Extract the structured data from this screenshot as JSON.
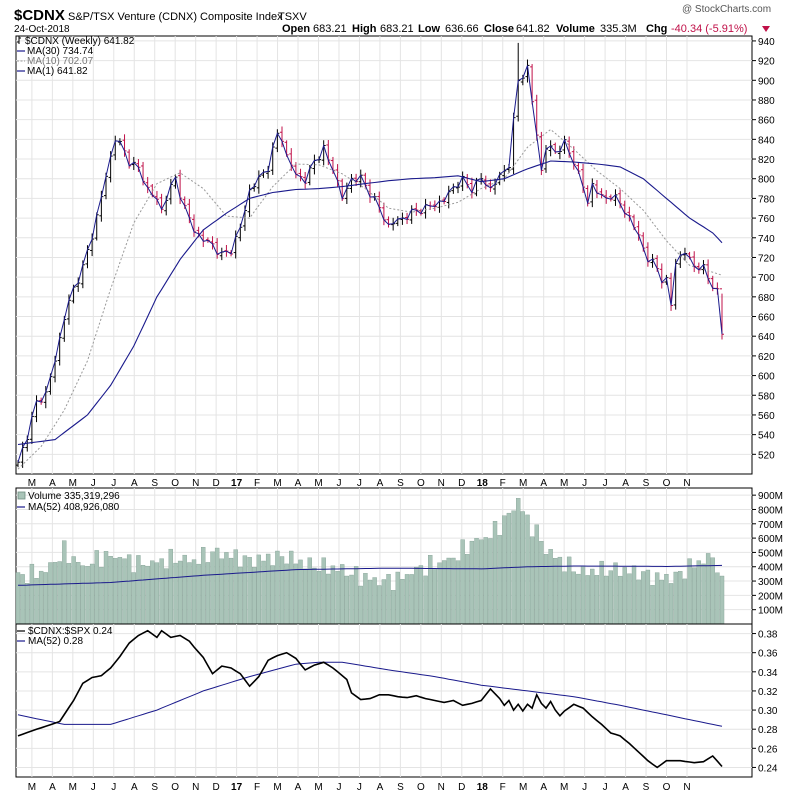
{
  "header": {
    "symbol": "$CDNX",
    "name": "S&P/TSX Venture (CDNX) Composite Index",
    "exchange": "TSXV",
    "date": "24-Oct-2018",
    "open_label": "Open",
    "open": "683.21",
    "high_label": "High",
    "high": "683.21",
    "low_label": "Low",
    "low": "636.66",
    "close_label": "Close",
    "close": "641.82",
    "volume_label": "Volume",
    "volume": "335.3M",
    "chg_label": "Chg",
    "chg": "-40.34 (-5.91%)",
    "watermark": "@ StockCharts.com"
  },
  "colors": {
    "up_bar": "#000000",
    "down_bar": "#c01048",
    "ma30": "#1a1a8c",
    "ma10": "#999999",
    "ma1": "#1a1a8c",
    "volume_fill": "#a9c4b8",
    "volume_edge": "#6f8f82",
    "ratio_line": "#000000",
    "ratio_ma": "#1a1a8c",
    "grid": "#e4e4e4",
    "chg_red": "#c01048"
  },
  "chart_data": [
    {
      "type": "line",
      "panel": "price",
      "title": "$CDNX S&P/TSX Venture (CDNX) Composite Index TSXV",
      "ylim": [
        500,
        945
      ],
      "yticks": [
        520,
        540,
        560,
        580,
        600,
        620,
        640,
        660,
        680,
        700,
        720,
        740,
        760,
        780,
        800,
        820,
        840,
        860,
        880,
        900,
        920,
        940
      ],
      "legend": [
        {
          "label": "$CDNX (Weekly) 641.82",
          "style": "bar"
        },
        {
          "label": "MA(30) 734.74",
          "style": "solid"
        },
        {
          "label": "MA(10) 702.07",
          "style": "dotted"
        },
        {
          "label": "MA(1) 641.82",
          "style": "solid"
        }
      ],
      "x_months": [
        "M",
        "A",
        "M",
        "J",
        "J",
        "A",
        "S",
        "O",
        "N",
        "D",
        "17",
        "F",
        "M",
        "A",
        "M",
        "J",
        "J",
        "A",
        "S",
        "O",
        "N",
        "D",
        "18",
        "F",
        "M",
        "A",
        "M",
        "J",
        "J",
        "A",
        "S",
        "O",
        "N"
      ],
      "close_keypoints": [
        [
          0,
          510
        ],
        [
          2,
          540
        ],
        [
          4,
          572
        ],
        [
          6,
          582
        ],
        [
          8,
          615
        ],
        [
          10,
          660
        ],
        [
          12,
          688
        ],
        [
          14,
          710
        ],
        [
          16,
          742
        ],
        [
          18,
          782
        ],
        [
          20,
          822
        ],
        [
          21,
          842
        ],
        [
          22,
          835
        ],
        [
          24,
          818
        ],
        [
          26,
          810
        ],
        [
          28,
          790
        ],
        [
          30,
          778
        ],
        [
          31,
          768
        ],
        [
          32,
          782
        ],
        [
          34,
          800
        ],
        [
          36,
          770
        ],
        [
          38,
          748
        ],
        [
          40,
          738
        ],
        [
          42,
          733
        ],
        [
          44,
          722
        ],
        [
          46,
          728
        ],
        [
          48,
          750
        ],
        [
          50,
          788
        ],
        [
          52,
          800
        ],
        [
          54,
          812
        ],
        [
          56,
          845
        ],
        [
          57,
          842
        ],
        [
          58,
          822
        ],
        [
          60,
          805
        ],
        [
          62,
          798
        ],
        [
          64,
          818
        ],
        [
          66,
          830
        ],
        [
          67,
          818
        ],
        [
          68,
          812
        ],
        [
          70,
          780
        ],
        [
          72,
          800
        ],
        [
          74,
          800
        ],
        [
          76,
          786
        ],
        [
          78,
          770
        ],
        [
          80,
          752
        ],
        [
          82,
          758
        ],
        [
          84,
          762
        ],
        [
          86,
          768
        ],
        [
          88,
          770
        ],
        [
          90,
          774
        ],
        [
          92,
          778
        ],
        [
          94,
          792
        ],
        [
          96,
          798
        ],
        [
          98,
          790
        ],
        [
          100,
          800
        ],
        [
          102,
          790
        ],
        [
          104,
          802
        ],
        [
          106,
          815
        ],
        [
          108,
          900
        ],
        [
          110,
          912
        ],
        [
          112,
          845
        ],
        [
          113,
          808
        ],
        [
          114,
          832
        ],
        [
          116,
          828
        ],
        [
          118,
          835
        ],
        [
          120,
          818
        ],
        [
          122,
          792
        ],
        [
          123,
          775
        ],
        [
          124,
          795
        ],
        [
          126,
          780
        ],
        [
          128,
          783
        ],
        [
          130,
          775
        ],
        [
          132,
          760
        ],
        [
          134,
          742
        ],
        [
          136,
          718
        ],
        [
          138,
          710
        ],
        [
          139,
          698
        ],
        [
          140,
          695
        ],
        [
          141,
          672
        ],
        [
          142,
          716
        ],
        [
          144,
          725
        ],
        [
          146,
          712
        ],
        [
          148,
          708
        ],
        [
          150,
          692
        ],
        [
          151,
          684
        ],
        [
          152,
          642
        ]
      ],
      "ma30_keypoints": [
        [
          0,
          530
        ],
        [
          8,
          535
        ],
        [
          15,
          560
        ],
        [
          20,
          590
        ],
        [
          25,
          630
        ],
        [
          30,
          680
        ],
        [
          35,
          718
        ],
        [
          40,
          748
        ],
        [
          45,
          765
        ],
        [
          50,
          780
        ],
        [
          55,
          786
        ],
        [
          60,
          789
        ],
        [
          65,
          790
        ],
        [
          70,
          792
        ],
        [
          75,
          795
        ],
        [
          80,
          798
        ],
        [
          85,
          800
        ],
        [
          90,
          801
        ],
        [
          95,
          803
        ],
        [
          100,
          797
        ],
        [
          105,
          800
        ],
        [
          110,
          810
        ],
        [
          115,
          818
        ],
        [
          120,
          817
        ],
        [
          125,
          815
        ],
        [
          130,
          812
        ],
        [
          135,
          800
        ],
        [
          140,
          780
        ],
        [
          145,
          760
        ],
        [
          150,
          745
        ],
        [
          152,
          735
        ]
      ],
      "ma10_keypoints": [
        [
          0,
          505
        ],
        [
          5,
          528
        ],
        [
          10,
          565
        ],
        [
          15,
          615
        ],
        [
          20,
          688
        ],
        [
          25,
          755
        ],
        [
          30,
          795
        ],
        [
          35,
          806
        ],
        [
          40,
          790
        ],
        [
          45,
          762
        ],
        [
          50,
          760
        ],
        [
          55,
          792
        ],
        [
          60,
          815
        ],
        [
          65,
          814
        ],
        [
          70,
          805
        ],
        [
          75,
          790
        ],
        [
          80,
          770
        ],
        [
          85,
          766
        ],
        [
          90,
          770
        ],
        [
          95,
          776
        ],
        [
          100,
          790
        ],
        [
          105,
          800
        ],
        [
          110,
          832
        ],
        [
          115,
          850
        ],
        [
          120,
          830
        ],
        [
          125,
          808
        ],
        [
          130,
          790
        ],
        [
          135,
          768
        ],
        [
          140,
          737
        ],
        [
          145,
          712
        ],
        [
          150,
          705
        ],
        [
          152,
          702
        ]
      ]
    },
    {
      "type": "bar",
      "panel": "volume",
      "title": "Volume 335,319,296",
      "legend": [
        {
          "label": "Volume 335,319,296"
        },
        {
          "label": "MA(52) 408,926,080"
        }
      ],
      "ylim": [
        0,
        950
      ],
      "ytick_values": [
        100,
        200,
        300,
        400,
        500,
        600,
        700,
        800,
        900
      ],
      "ytick_labels": [
        "100M",
        "200M",
        "300M",
        "400M",
        "500M",
        "600M",
        "700M",
        "800M",
        "900M"
      ],
      "volume_keypoints_M": [
        [
          0,
          330
        ],
        [
          6,
          370
        ],
        [
          10,
          510
        ],
        [
          14,
          400
        ],
        [
          18,
          470
        ],
        [
          22,
          470
        ],
        [
          26,
          420
        ],
        [
          30,
          430
        ],
        [
          34,
          460
        ],
        [
          38,
          440
        ],
        [
          42,
          500
        ],
        [
          46,
          480
        ],
        [
          50,
          440
        ],
        [
          54,
          460
        ],
        [
          58,
          470
        ],
        [
          62,
          420
        ],
        [
          66,
          400
        ],
        [
          70,
          380
        ],
        [
          74,
          330
        ],
        [
          78,
          300
        ],
        [
          82,
          310
        ],
        [
          86,
          380
        ],
        [
          90,
          420
        ],
        [
          94,
          460
        ],
        [
          98,
          570
        ],
        [
          102,
          620
        ],
        [
          106,
          760
        ],
        [
          108,
          870
        ],
        [
          110,
          720
        ],
        [
          112,
          640
        ],
        [
          114,
          520
        ],
        [
          118,
          420
        ],
        [
          122,
          360
        ],
        [
          126,
          380
        ],
        [
          130,
          380
        ],
        [
          134,
          360
        ],
        [
          138,
          320
        ],
        [
          142,
          330
        ],
        [
          146,
          420
        ],
        [
          150,
          470
        ],
        [
          152,
          335
        ]
      ],
      "ma52_keypoints_M": [
        [
          0,
          270
        ],
        [
          20,
          290
        ],
        [
          40,
          340
        ],
        [
          60,
          380
        ],
        [
          80,
          390
        ],
        [
          100,
          385
        ],
        [
          110,
          400
        ],
        [
          120,
          405
        ],
        [
          130,
          404
        ],
        [
          140,
          402
        ],
        [
          150,
          408
        ],
        [
          152,
          409
        ]
      ]
    },
    {
      "type": "line",
      "panel": "ratio",
      "title": "$CDNX:$SPX 0.24",
      "legend": [
        {
          "label": "$CDNX:$SPX 0.24"
        },
        {
          "label": "MA(52) 0.28"
        }
      ],
      "ylim": [
        0.23,
        0.39
      ],
      "yticks": [
        0.24,
        0.26,
        0.28,
        0.3,
        0.32,
        0.34,
        0.36,
        0.38
      ],
      "ratio_keypoints": [
        [
          0,
          0.273
        ],
        [
          4,
          0.28
        ],
        [
          6,
          0.283
        ],
        [
          9,
          0.288
        ],
        [
          12,
          0.31
        ],
        [
          14,
          0.328
        ],
        [
          16,
          0.334
        ],
        [
          18,
          0.336
        ],
        [
          20,
          0.344
        ],
        [
          22,
          0.356
        ],
        [
          24,
          0.37
        ],
        [
          26,
          0.378
        ],
        [
          28,
          0.383
        ],
        [
          30,
          0.376
        ],
        [
          31,
          0.383
        ],
        [
          33,
          0.376
        ],
        [
          35,
          0.378
        ],
        [
          37,
          0.372
        ],
        [
          38,
          0.366
        ],
        [
          40,
          0.355
        ],
        [
          42,
          0.338
        ],
        [
          44,
          0.346
        ],
        [
          46,
          0.344
        ],
        [
          48,
          0.338
        ],
        [
          50,
          0.325
        ],
        [
          52,
          0.335
        ],
        [
          54,
          0.352
        ],
        [
          56,
          0.357
        ],
        [
          58,
          0.36
        ],
        [
          60,
          0.354
        ],
        [
          62,
          0.342
        ],
        [
          64,
          0.347
        ],
        [
          66,
          0.35
        ],
        [
          68,
          0.344
        ],
        [
          70,
          0.336
        ],
        [
          71,
          0.332
        ],
        [
          72,
          0.318
        ],
        [
          74,
          0.311
        ],
        [
          76,
          0.312
        ],
        [
          78,
          0.316
        ],
        [
          80,
          0.316
        ],
        [
          82,
          0.314
        ],
        [
          84,
          0.313
        ],
        [
          86,
          0.315
        ],
        [
          88,
          0.312
        ],
        [
          90,
          0.31
        ],
        [
          92,
          0.308
        ],
        [
          94,
          0.31
        ],
        [
          96,
          0.305
        ],
        [
          98,
          0.307
        ],
        [
          100,
          0.31
        ],
        [
          102,
          0.322
        ],
        [
          104,
          0.312
        ],
        [
          105,
          0.305
        ],
        [
          106,
          0.31
        ],
        [
          107,
          0.3
        ],
        [
          108,
          0.306
        ],
        [
          109,
          0.299
        ],
        [
          110,
          0.306
        ],
        [
          111,
          0.302
        ],
        [
          112,
          0.316
        ],
        [
          113,
          0.307
        ],
        [
          114,
          0.302
        ],
        [
          115,
          0.309
        ],
        [
          116,
          0.3
        ],
        [
          117,
          0.294
        ],
        [
          118,
          0.299
        ],
        [
          120,
          0.306
        ],
        [
          122,
          0.302
        ],
        [
          124,
          0.293
        ],
        [
          126,
          0.285
        ],
        [
          128,
          0.276
        ],
        [
          130,
          0.273
        ],
        [
          132,
          0.265
        ],
        [
          134,
          0.256
        ],
        [
          136,
          0.247
        ],
        [
          138,
          0.24
        ],
        [
          140,
          0.247
        ],
        [
          143,
          0.247
        ],
        [
          146,
          0.245
        ],
        [
          148,
          0.246
        ],
        [
          150,
          0.252
        ],
        [
          152,
          0.241
        ]
      ],
      "ma52_keypoints": [
        [
          0,
          0.295
        ],
        [
          10,
          0.285
        ],
        [
          20,
          0.285
        ],
        [
          30,
          0.3
        ],
        [
          40,
          0.32
        ],
        [
          50,
          0.335
        ],
        [
          60,
          0.348
        ],
        [
          65,
          0.35
        ],
        [
          70,
          0.35
        ],
        [
          80,
          0.342
        ],
        [
          90,
          0.335
        ],
        [
          100,
          0.326
        ],
        [
          110,
          0.32
        ],
        [
          120,
          0.314
        ],
        [
          130,
          0.305
        ],
        [
          140,
          0.295
        ],
        [
          150,
          0.285
        ],
        [
          152,
          0.283
        ]
      ]
    }
  ]
}
